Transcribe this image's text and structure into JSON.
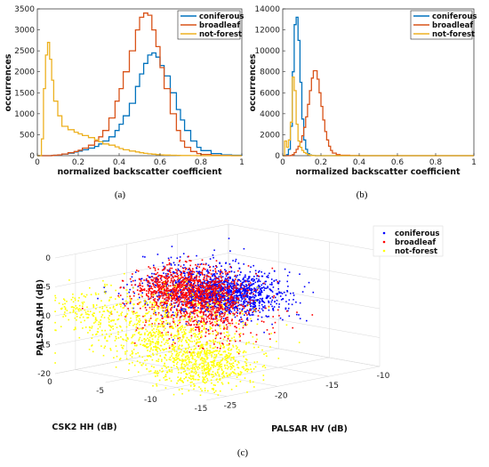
{
  "colors": {
    "coniferous": "#0072bd",
    "broadleaf": "#d95319",
    "not_forest": "#edb120",
    "scatter_coniferous": "#0000ff",
    "scatter_broadleaf": "#ff0000",
    "scatter_not_forest": "#ffff00"
  },
  "chart_data": [
    {
      "id": "a",
      "type": "line",
      "subtype": "stairs-histogram",
      "caption": "(a)",
      "xlabel": "normalized backscatter coefficient",
      "ylabel": "occurrences",
      "xlim": [
        0,
        1
      ],
      "ylim": [
        0,
        3500
      ],
      "xticks": [
        "0",
        "0.2",
        "0.4",
        "0.6",
        "0.8",
        "1"
      ],
      "yticks": [
        "0",
        "500",
        "1000",
        "1500",
        "2000",
        "2500",
        "3000",
        "3500"
      ],
      "legend_position": "top-right",
      "x": [
        0.0,
        0.02,
        0.03,
        0.04,
        0.05,
        0.06,
        0.07,
        0.08,
        0.1,
        0.12,
        0.15,
        0.18,
        0.2,
        0.22,
        0.25,
        0.28,
        0.3,
        0.32,
        0.35,
        0.38,
        0.4,
        0.42,
        0.45,
        0.48,
        0.5,
        0.52,
        0.54,
        0.56,
        0.58,
        0.6,
        0.62,
        0.65,
        0.68,
        0.7,
        0.72,
        0.75,
        0.78,
        0.8,
        0.85,
        0.9,
        0.95,
        1.0
      ],
      "series": [
        {
          "name": "coniferous",
          "color_key": "coniferous",
          "values": [
            0,
            0,
            0,
            0,
            0,
            0,
            5,
            10,
            20,
            40,
            60,
            90,
            110,
            140,
            180,
            220,
            280,
            350,
            450,
            600,
            750,
            950,
            1250,
            1650,
            1950,
            2200,
            2400,
            2450,
            2350,
            2150,
            1900,
            1500,
            1100,
            850,
            600,
            350,
            200,
            120,
            50,
            20,
            10,
            0
          ]
        },
        {
          "name": "broadleaf",
          "color_key": "broadleaf",
          "values": [
            0,
            0,
            0,
            0,
            0,
            0,
            5,
            10,
            20,
            40,
            70,
            100,
            130,
            180,
            250,
            350,
            450,
            600,
            900,
            1300,
            1600,
            2000,
            2500,
            3000,
            3300,
            3400,
            3350,
            3000,
            2600,
            2100,
            1600,
            1000,
            600,
            350,
            200,
            100,
            50,
            30,
            10,
            5,
            0,
            0
          ]
        },
        {
          "name": "not-forest",
          "color_key": "not_forest",
          "values": [
            0,
            400,
            1600,
            2400,
            2700,
            2300,
            1800,
            1300,
            950,
            700,
            620,
            560,
            520,
            480,
            430,
            380,
            330,
            280,
            250,
            210,
            170,
            140,
            110,
            90,
            70,
            55,
            45,
            35,
            25,
            20,
            15,
            10,
            8,
            5,
            4,
            2,
            1,
            0,
            0,
            0,
            0,
            0
          ]
        }
      ]
    },
    {
      "id": "b",
      "type": "line",
      "subtype": "stairs-histogram",
      "caption": "(b)",
      "xlabel": "normalized backscatter coefficient",
      "ylabel": "occurrences",
      "xlim": [
        0,
        1
      ],
      "ylim": [
        0,
        14000
      ],
      "xticks": [
        "0",
        "0.2",
        "0.4",
        "0.6",
        "0.8",
        "1"
      ],
      "yticks": [
        "0",
        "2000",
        "4000",
        "6000",
        "8000",
        "10000",
        "12000",
        "14000"
      ],
      "legend_position": "top-right",
      "x": [
        0.0,
        0.01,
        0.02,
        0.03,
        0.04,
        0.05,
        0.06,
        0.07,
        0.08,
        0.09,
        0.1,
        0.11,
        0.12,
        0.13,
        0.14,
        0.15,
        0.16,
        0.17,
        0.18,
        0.19,
        0.2,
        0.21,
        0.22,
        0.23,
        0.24,
        0.25,
        0.26,
        0.28,
        0.3,
        0.35,
        0.4,
        0.5,
        0.6,
        0.8,
        1.0
      ],
      "series": [
        {
          "name": "coniferous",
          "color_key": "coniferous",
          "values": [
            0,
            0,
            100,
            600,
            2800,
            8000,
            12500,
            13200,
            11000,
            7000,
            3500,
            1500,
            600,
            200,
            80,
            30,
            10,
            0,
            0,
            0,
            0,
            0,
            0,
            0,
            0,
            0,
            0,
            0,
            0,
            0,
            0,
            0,
            0,
            0,
            0
          ]
        },
        {
          "name": "broadleaf",
          "color_key": "broadleaf",
          "values": [
            0,
            0,
            0,
            0,
            20,
            100,
            300,
            600,
            900,
            1300,
            1900,
            2700,
            3700,
            4900,
            6200,
            7400,
            8100,
            8100,
            7300,
            6000,
            4700,
            3400,
            2300,
            1500,
            900,
            500,
            250,
            100,
            40,
            10,
            0,
            0,
            0,
            0,
            0
          ]
        },
        {
          "name": "not-forest",
          "color_key": "not_forest",
          "values": [
            0,
            1400,
            800,
            1500,
            3200,
            7500,
            6200,
            3000,
            1400,
            800,
            500,
            300,
            200,
            100,
            50,
            20,
            10,
            0,
            0,
            0,
            0,
            0,
            0,
            0,
            0,
            0,
            0,
            0,
            0,
            0,
            0,
            0,
            0,
            0,
            0
          ]
        }
      ]
    },
    {
      "id": "c",
      "type": "scatter",
      "dimensions": 3,
      "caption": "(c)",
      "xlabel": "PALSAR HV (dB)",
      "ylabel": "CSK2 HH (dB)",
      "zlabel": "PALSAR HH (dB)",
      "xlim": [
        -27,
        -10
      ],
      "ylim": [
        -15,
        0
      ],
      "zlim": [
        -20,
        0
      ],
      "xticks": [
        "-25",
        "-20",
        "-15",
        "-10"
      ],
      "yticks": [
        "0",
        "-5",
        "-10",
        "-15"
      ],
      "zticks": [
        "0",
        "-5",
        "-10",
        "-15",
        "-20"
      ],
      "legend_position": "top-right",
      "series": [
        {
          "name": "coniferous",
          "color_key": "scatter_coniferous",
          "marker": "point",
          "clusters": [
            {
              "center": [
                -15,
                -5,
                -9
              ],
              "spread": [
                1.8,
                2.2,
                1.6
              ],
              "weight": 0.7
            },
            {
              "center": [
                -17,
                -4,
                -7
              ],
              "spread": [
                2.4,
                2.6,
                2.4
              ],
              "weight": 0.3
            }
          ]
        },
        {
          "name": "broadleaf",
          "color_key": "scatter_broadleaf",
          "marker": "point",
          "clusters": [
            {
              "center": [
                -17,
                -3,
                -8
              ],
              "spread": [
                1.6,
                2.2,
                1.8
              ],
              "weight": 0.7
            },
            {
              "center": [
                -18.5,
                -6,
                -11
              ],
              "spread": [
                2.0,
                2.4,
                2.2
              ],
              "weight": 0.3
            }
          ]
        },
        {
          "name": "not-forest",
          "color_key": "scatter_not_forest",
          "marker": "point",
          "clusters": [
            {
              "center": [
                -24,
                -12,
                -16
              ],
              "spread": [
                1.8,
                1.6,
                2.0
              ],
              "weight": 0.35
            },
            {
              "center": [
                -23,
                -7,
                -14
              ],
              "spread": [
                2.0,
                3.2,
                2.4
              ],
              "weight": 0.35
            },
            {
              "center": [
                -20,
                -4,
                -11
              ],
              "spread": [
                2.5,
                3.0,
                2.5
              ],
              "weight": 0.2
            },
            {
              "center": [
                -26,
                -2,
                -9
              ],
              "spread": [
                1.2,
                2.0,
                1.6
              ],
              "weight": 0.1
            }
          ]
        }
      ]
    }
  ]
}
